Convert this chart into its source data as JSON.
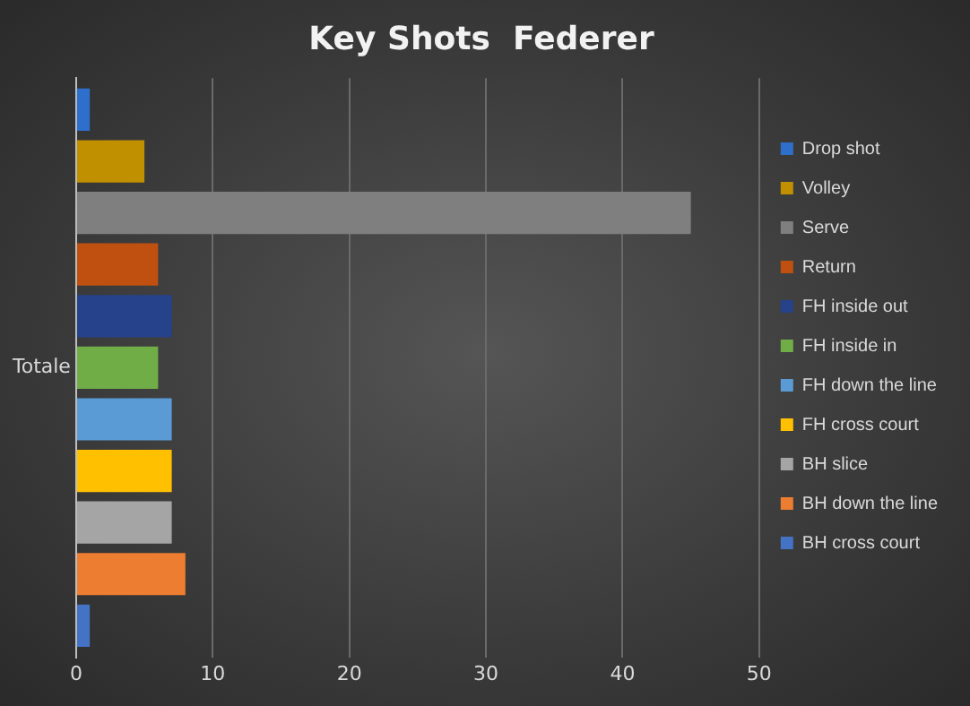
{
  "chart_data": {
    "type": "bar",
    "orientation": "horizontal",
    "title": "Key Shots  Federer",
    "categories": [
      "Totale"
    ],
    "series": [
      {
        "name": "Drop shot",
        "color": "#2e6fcc",
        "values": [
          1
        ]
      },
      {
        "name": "Volley",
        "color": "#c09000",
        "values": [
          5
        ]
      },
      {
        "name": "Serve",
        "color": "#7f7f7f",
        "values": [
          45
        ]
      },
      {
        "name": "Return",
        "color": "#c0500f",
        "values": [
          6
        ]
      },
      {
        "name": "FH inside out",
        "color": "#26428b",
        "values": [
          7
        ]
      },
      {
        "name": "FH inside in",
        "color": "#70ad47",
        "values": [
          6
        ]
      },
      {
        "name": "FH down the line",
        "color": "#5b9bd5",
        "values": [
          7
        ]
      },
      {
        "name": "FH cross court",
        "color": "#ffc000",
        "values": [
          7
        ]
      },
      {
        "name": "BH slice",
        "color": "#a5a5a5",
        "values": [
          7
        ]
      },
      {
        "name": "BH down the line",
        "color": "#ed7d31",
        "values": [
          8
        ]
      },
      {
        "name": "BH cross court",
        "color": "#4472c4",
        "values": [
          1
        ]
      }
    ],
    "xlim": [
      0,
      50
    ],
    "xticks": [
      0,
      10,
      20,
      30,
      40,
      50
    ],
    "grid": "x",
    "legend": "right"
  }
}
